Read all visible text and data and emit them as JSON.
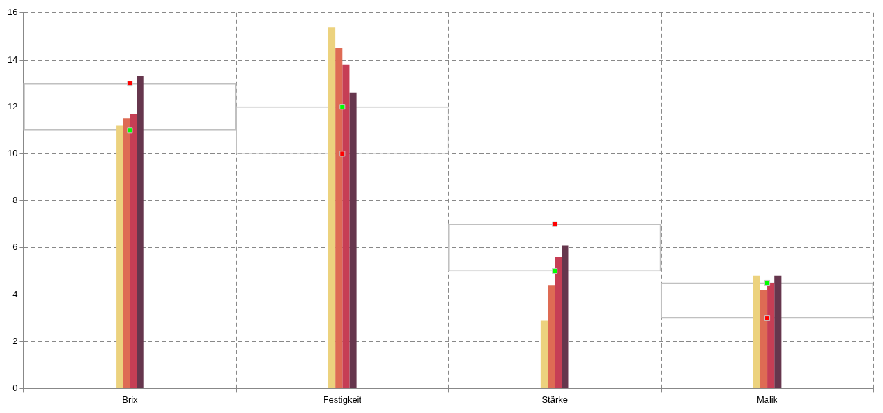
{
  "chart_data": {
    "type": "bar",
    "categories": [
      "Brix",
      "Festigkeit",
      "Stärke",
      "Malik"
    ],
    "series": [
      {
        "color": "#ecd27e",
        "values": [
          11.2,
          15.4,
          2.9,
          4.8
        ]
      },
      {
        "color": "#de6b54",
        "values": [
          11.5,
          14.5,
          4.4,
          4.2
        ]
      },
      {
        "color": "#c63e55",
        "values": [
          11.7,
          13.8,
          5.6,
          4.5
        ]
      },
      {
        "color": "#66364d",
        "values": [
          13.3,
          12.6,
          6.1,
          4.8
        ]
      },
      {
        "type": "bar",
        "color": "#c0c0c0",
        "base": [
          11,
          10,
          5,
          3
        ],
        "values": [
          2,
          2,
          2,
          1.5
        ]
      },
      {
        "type": "scatter",
        "color": "#ff0000",
        "marker": "square",
        "x": [
          "Brix",
          "Festigkeit",
          "Stärke",
          "Malik"
        ],
        "values": [
          13,
          10,
          7,
          3
        ]
      },
      {
        "type": "scatter",
        "color": "#00ff00",
        "marker": "square",
        "x": [
          "Brix",
          "Festigkeit",
          "Stärke",
          "Malik"
        ],
        "values": [
          11,
          12,
          5,
          4.5
        ]
      }
    ],
    "ylim": [
      0,
      16
    ],
    "yticks": [
      0,
      2,
      4,
      6,
      8,
      10,
      12,
      14,
      16
    ],
    "grid": true,
    "line_style": "dashed",
    "legend": false
  }
}
